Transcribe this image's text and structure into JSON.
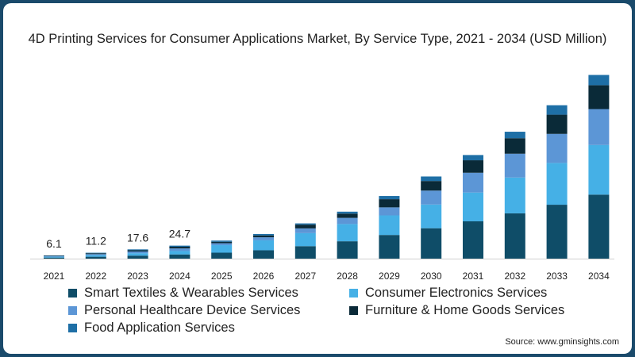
{
  "chart_data": {
    "type": "bar",
    "stacked": true,
    "title": "4D Printing Services for Consumer Applications Market, By Service Type, 2021 - 2034 (USD Million)",
    "xlabel": "",
    "ylabel": "",
    "ylim": [
      0,
      350
    ],
    "grid": false,
    "legend_position": "bottom-left",
    "categories": [
      "2021",
      "2022",
      "2023",
      "2024",
      "2025",
      "2026",
      "2027",
      "2028",
      "2029",
      "2030",
      "2031",
      "2032",
      "2033",
      "2034"
    ],
    "total_labels": [
      "6.1",
      "11.2",
      "17.6",
      "24.7",
      "",
      "",
      "",
      "",
      "",
      "",
      "",
      "",
      "",
      ""
    ],
    "series": [
      {
        "name": "Smart Textiles & Wearables Services",
        "color": "#0f4d68",
        "values": [
          2.0,
          3.6,
          5.7,
          8.0,
          11.3,
          15.9,
          23.7,
          33.0,
          45.0,
          57.8,
          70.9,
          86.1,
          102.5,
          121.7
        ]
      },
      {
        "name": "Consumer Electronics Services",
        "color": "#45b0e6",
        "values": [
          1.6,
          3.0,
          4.6,
          6.4,
          14.3,
          18.9,
          24.8,
          32.8,
          37.2,
          45.1,
          54.8,
          68.1,
          79.5,
          94.3
        ]
      },
      {
        "name": "Personal Healthcare Device Services",
        "color": "#5c96d6",
        "values": [
          0.9,
          2.0,
          3.3,
          5.0,
          3.7,
          5.8,
          9.0,
          11.7,
          15.3,
          26.5,
          37.6,
          45.3,
          55.2,
          68.4
        ]
      },
      {
        "name": "Furniture & Home Goods Services",
        "color": "#0a2a38",
        "values": [
          0.9,
          1.6,
          2.4,
          3.2,
          2.8,
          3.6,
          7.1,
          8.1,
          15.5,
          18.2,
          23.7,
          29.5,
          36.5,
          45.4
        ]
      },
      {
        "name": "Food Application Services",
        "color": "#1e6fa6",
        "values": [
          0.7,
          1.0,
          1.6,
          2.1,
          2.2,
          2.6,
          2.4,
          3.7,
          6.1,
          8.6,
          10.0,
          12.3,
          18.0,
          19.5
        ]
      }
    ]
  },
  "source": "Source: www.gminsights.com"
}
